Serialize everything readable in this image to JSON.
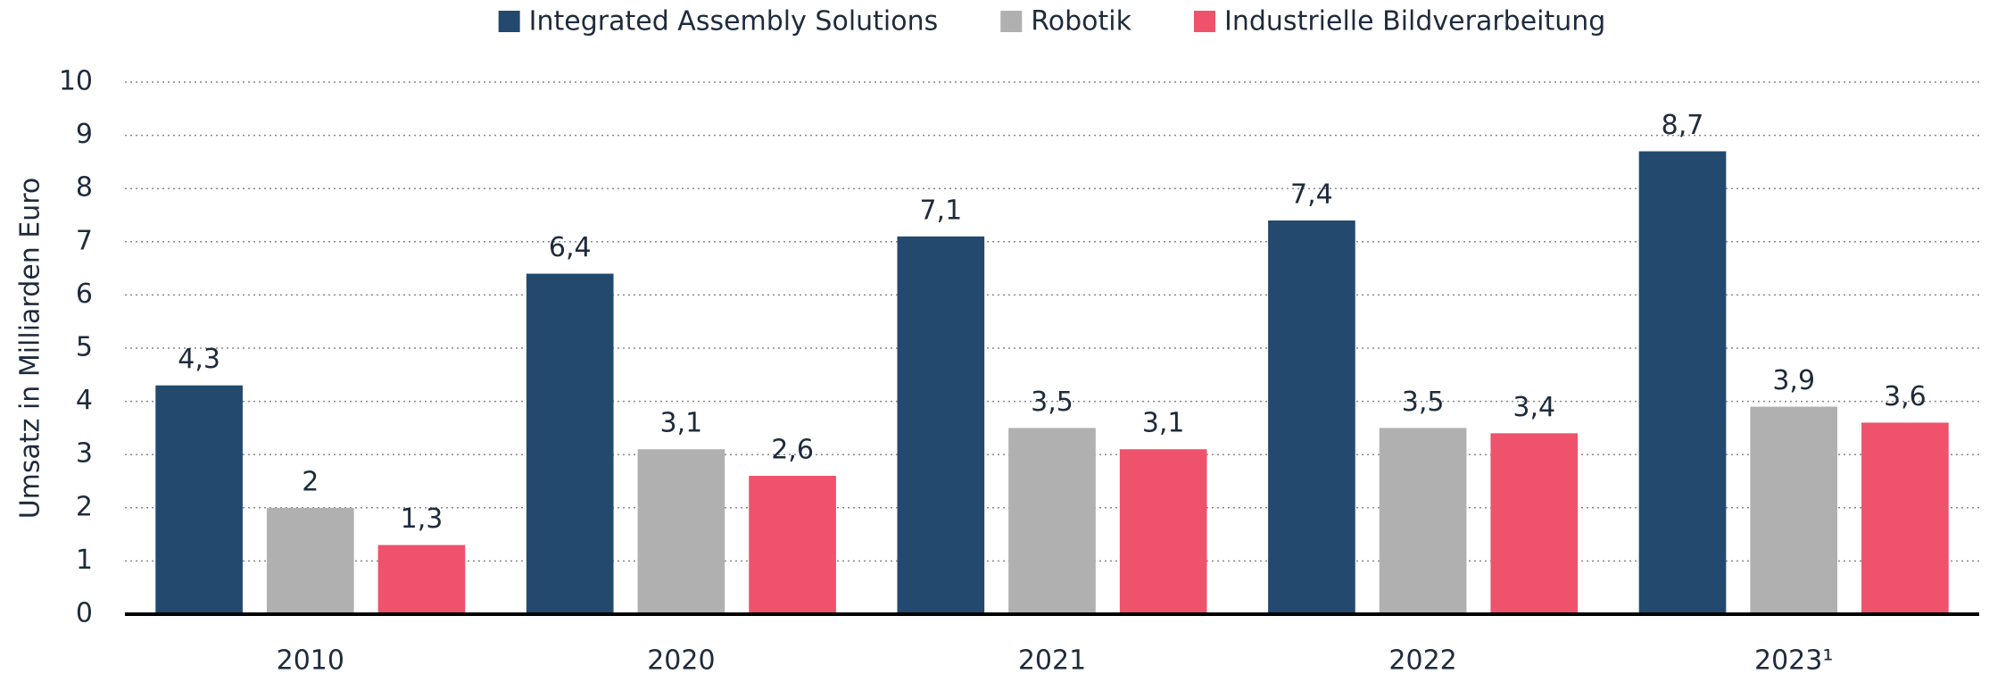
{
  "chart_data": {
    "type": "bar",
    "y_label": "Umsatz in Milliarden Euro",
    "categories": [
      "2010",
      "2020",
      "2021",
      "2022",
      "2023¹"
    ],
    "series": [
      {
        "name": "Integrated Assembly Solutions",
        "color": "#234a6e",
        "values": [
          4.3,
          6.4,
          7.1,
          7.4,
          8.7
        ],
        "value_labels": [
          "4,3",
          "6,4",
          "7,1",
          "7,4",
          "8,7"
        ]
      },
      {
        "name": "Robotik",
        "color": "#b0b0b1",
        "values": [
          2,
          3.1,
          3.5,
          3.5,
          3.9
        ],
        "value_labels": [
          "2",
          "3,1",
          "3,5",
          "3,5",
          "3,9"
        ]
      },
      {
        "name": "Industrielle Bildverarbeitung",
        "color": "#ef526b",
        "values": [
          1.3,
          2.6,
          3.1,
          3.4,
          3.6
        ],
        "value_labels": [
          "1,3",
          "2,6",
          "3,1",
          "3,4",
          "3,6"
        ]
      }
    ],
    "ylim": [
      0,
      10
    ],
    "yticks": [
      0,
      1,
      2,
      3,
      4,
      5,
      6,
      7,
      8,
      9,
      10
    ],
    "grid": true,
    "legend": "top"
  }
}
